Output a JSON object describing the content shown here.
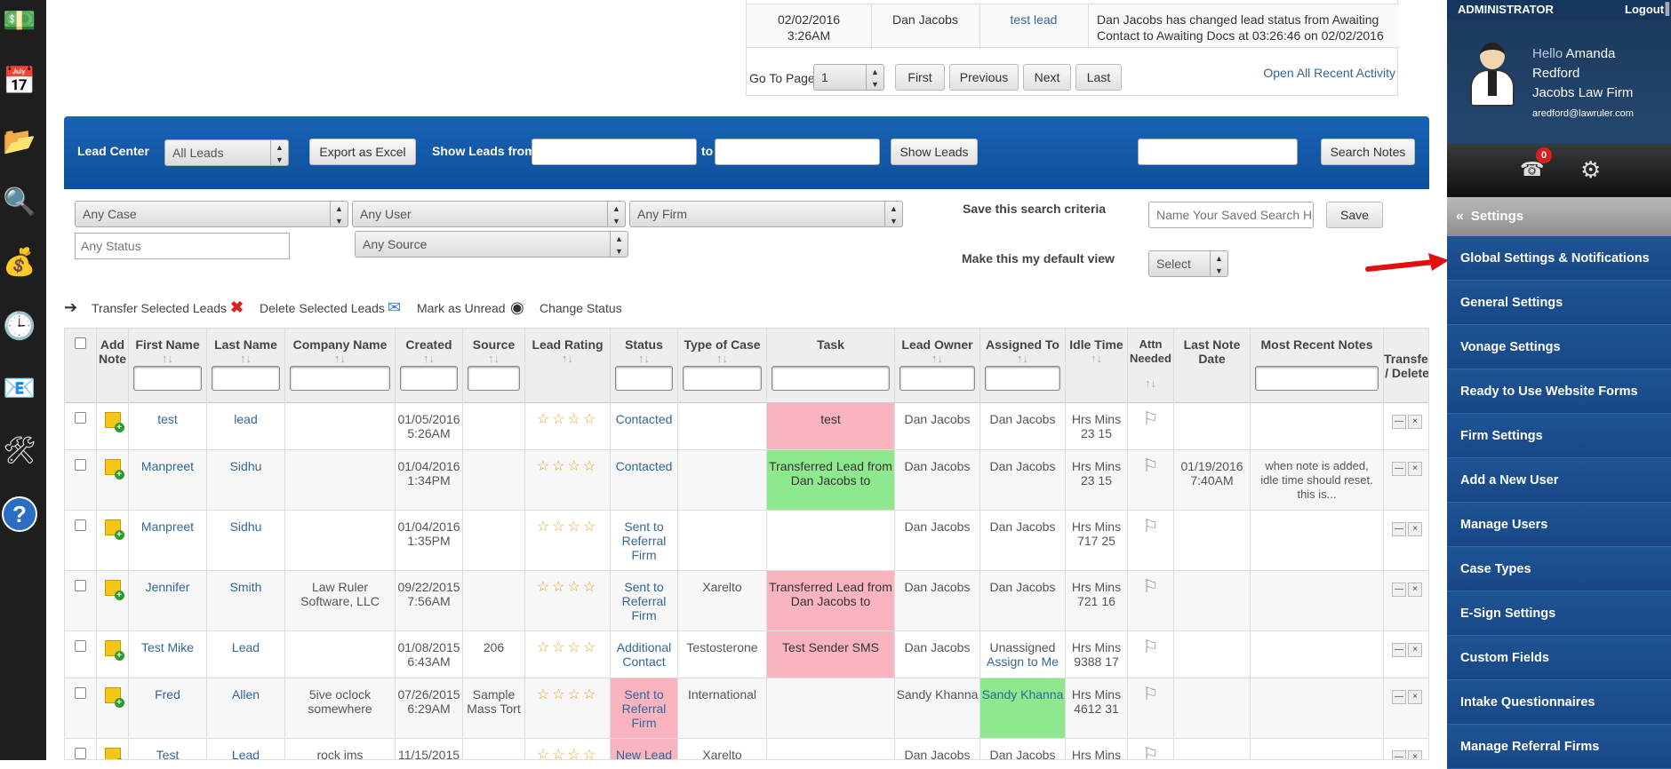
{
  "activity": {
    "row": {
      "date": "02/02/2016",
      "time": "3:26AM",
      "user": "Dan Jacobs",
      "lead": "test lead",
      "desc1": "Dan Jacobs has changed lead status from Awaiting",
      "desc2": "Contact to Awaiting Docs at 03:26:46 on 02/02/2016"
    },
    "goto_label": "Go To Page",
    "page_value": "1",
    "first": "First",
    "previous": "Previous",
    "next": "Next",
    "last": "Last",
    "open_all": "Open All Recent Activity"
  },
  "bluebar": {
    "title": "Lead Center",
    "leads_select": "All Leads",
    "export": "Export as Excel",
    "show_from": "Show Leads from",
    "to": "to",
    "show_leads": "Show Leads",
    "search_notes": "Search Notes"
  },
  "filters": {
    "case": "Any Case",
    "user": "Any User",
    "firm": "Any Firm",
    "status_placeholder": "Any Status",
    "source": "Any Source",
    "save_criteria": "Save this search criteria",
    "saved_search_placeholder": "Name Your Saved Search Here",
    "save": "Save",
    "default_view": "Make this my default view",
    "select": "Select"
  },
  "actions": {
    "transfer": "Transfer Selected Leads",
    "delete": "Delete Selected Leads",
    "unread": "Mark as Unread",
    "change_status": "Change Status"
  },
  "columns": {
    "add_note": "Add Note",
    "first": "First Name",
    "last": "Last Name",
    "company": "Company Name",
    "created": "Created",
    "source": "Source",
    "rating": "Lead Rating",
    "status": "Status",
    "case_type": "Type of Case",
    "task": "Task",
    "owner": "Lead Owner",
    "assigned": "Assigned To",
    "idle": "Idle Time",
    "attn": "Attn Needed",
    "last_note": "Last Note Date",
    "recent_notes": "Most Recent Notes",
    "transfer": "Transfer / Delete",
    "sort": "↑↓"
  },
  "rows": [
    {
      "first": "test",
      "last": "lead",
      "company": "",
      "created_d": "01/05/2016",
      "created_t": "5:26AM",
      "source": "",
      "status": "Contacted",
      "case_type": "",
      "task": "test",
      "owner": "Dan Jacobs",
      "assigned": "Dan Jacobs",
      "assign_me": "",
      "idle_h": "Hrs Mins",
      "idle_v": "23   15",
      "note_d": "",
      "note_t": "",
      "notes": ""
    },
    {
      "first": "Manpreet",
      "last": "Sidhu",
      "company": "",
      "created_d": "01/04/2016",
      "created_t": "1:34PM",
      "source": "",
      "status": "Contacted",
      "case_type": "",
      "task": "Transferred Lead from Dan Jacobs to",
      "owner": "Dan Jacobs",
      "assigned": "Dan Jacobs",
      "assign_me": "",
      "idle_h": "Hrs Mins",
      "idle_v": "23   15",
      "note_d": "01/19/2016",
      "note_t": "7:40AM",
      "notes": "when note is added, idle time should reset. this is..."
    },
    {
      "first": "Manpreet",
      "last": "Sidhu",
      "company": "",
      "created_d": "01/04/2016",
      "created_t": "1:35PM",
      "source": "",
      "status": "Sent to Referral Firm",
      "case_type": "",
      "task": "",
      "owner": "Dan Jacobs",
      "assigned": "Dan Jacobs",
      "assign_me": "",
      "idle_h": "Hrs Mins",
      "idle_v": "717   25",
      "note_d": "",
      "note_t": "",
      "notes": ""
    },
    {
      "first": "Jennifer",
      "last": "Smith",
      "company": "Law Ruler Software, LLC",
      "created_d": "09/22/2015",
      "created_t": "7:56AM",
      "source": "",
      "status": "Sent to Referral Firm",
      "case_type": "Xarelto",
      "task": "Transferred Lead from Dan Jacobs to",
      "owner": "Dan Jacobs",
      "assigned": "Dan Jacobs",
      "assign_me": "",
      "idle_h": "Hrs Mins",
      "idle_v": "721   16",
      "note_d": "",
      "note_t": "",
      "notes": ""
    },
    {
      "first": "Test Mike",
      "last": "Lead",
      "company": "",
      "created_d": "01/08/2015",
      "created_t": "6:43AM",
      "source": "206",
      "status": "Additional Contact",
      "case_type": "Testosterone",
      "task": "Test Sender SMS",
      "owner": "Dan Jacobs",
      "assigned": "Unassigned",
      "assign_me": "Assign to Me",
      "idle_h": "Hrs Mins",
      "idle_v": "9388   17",
      "note_d": "",
      "note_t": "",
      "notes": ""
    },
    {
      "first": "Fred",
      "last": "Allen",
      "company": "5ive oclock somewhere",
      "created_d": "07/26/2015",
      "created_t": "6:29AM",
      "source": "Sample Mass Tort",
      "status": "Sent to Referral Firm",
      "case_type": "International",
      "task": "",
      "owner": "Sandy Khanna",
      "assigned": "Sandy Khanna",
      "assign_me": "",
      "idle_h": "Hrs Mins",
      "idle_v": "4612   31",
      "note_d": "",
      "note_t": "",
      "notes": ""
    },
    {
      "first": "Test",
      "last": "Lead",
      "company": "rock ims",
      "created_d": "11/15/2015",
      "created_t": "",
      "source": "",
      "status": "New Lead",
      "case_type": "Xarelto",
      "task": "",
      "owner": "Dan Jacobs",
      "assigned": "Dan Jacobs",
      "assign_me": "",
      "idle_h": "Hrs Mins",
      "idle_v": "",
      "note_d": "",
      "note_t": "",
      "notes": ""
    }
  ],
  "panel": {
    "role": "ADMINISTRATOR",
    "logout": "Logout",
    "hello": "Hello",
    "first_name": "Amanda",
    "last_name": "Redford",
    "firm": "Jacobs Law Firm",
    "email": "aredford@lawruler.com",
    "badge": "0",
    "settings_header": "Settings",
    "menu": [
      "Global Settings & Notifications",
      "General Settings",
      "Vonage Settings",
      "Ready to Use Website Forms",
      "Firm Settings",
      "Add a New User",
      "Manage Users",
      "Case Types",
      "E-Sign Settings",
      "Custom Fields",
      "Intake Questionnaires",
      "Manage Referral Firms"
    ]
  }
}
